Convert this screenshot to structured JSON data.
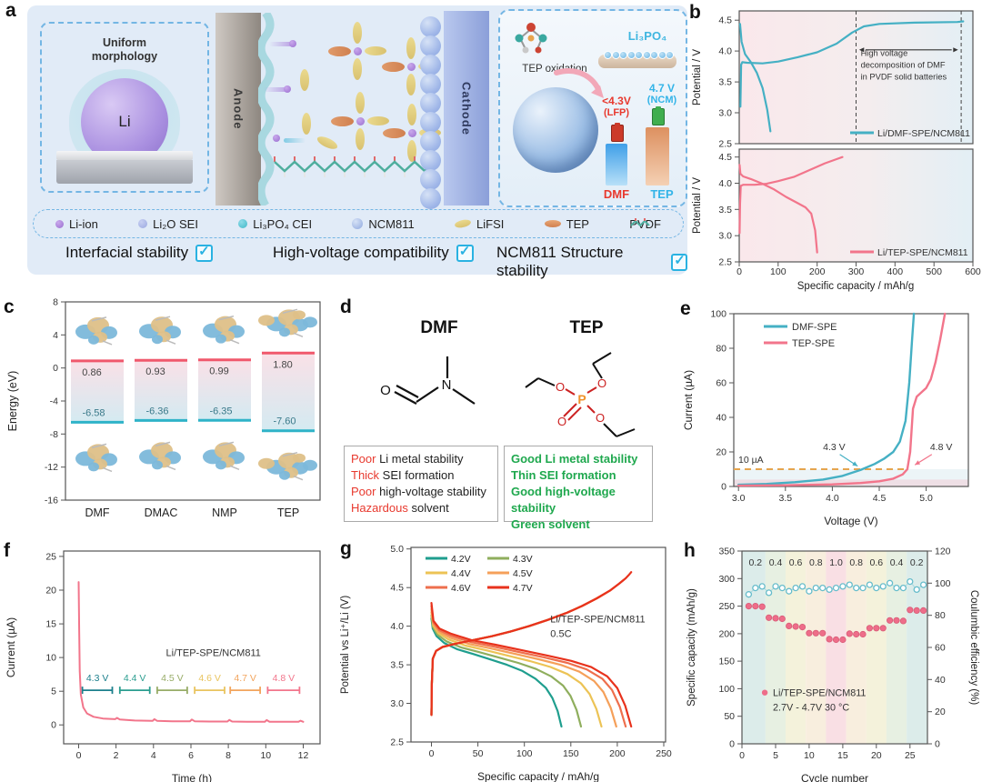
{
  "panels": {
    "a": {
      "label": "a",
      "inset_left": {
        "caption1": "Uniform",
        "caption2": "morphology",
        "sphere_label": "Li"
      },
      "anode_label": "Anode",
      "cathode_label": "Cathode",
      "inset_right": {
        "tep_oxidation": "TEP oxidation",
        "li3po4": "Li₃PO₄",
        "dmf_voltage": "<4.3V",
        "dmf_note": "(LFP)",
        "ncm_voltage": "4.7 V",
        "ncm_note": "(NCM)",
        "dmf_label": "DMF",
        "tep_label": "TEP"
      },
      "legend": [
        {
          "label": "Li-ion",
          "icon": "li-ion"
        },
        {
          "label": "Li₂O SEI",
          "icon": "li2o"
        },
        {
          "label": "Li₃PO₄ CEI",
          "icon": "li3po4"
        },
        {
          "label": "NCM811",
          "icon": "ncm"
        },
        {
          "label": "LiFSI",
          "icon": "lifsi"
        },
        {
          "label": "TEP",
          "icon": "tep"
        },
        {
          "label": "PVDF",
          "icon": "pvdf"
        }
      ],
      "checks": [
        "Interfacial stability",
        "High-voltage compatibility",
        "NCM811 Structure stability"
      ]
    },
    "b": {
      "label": "b"
    },
    "c": {
      "label": "c"
    },
    "d": {
      "label": "d",
      "hl_color": "#e8392e",
      "text_color": "#222222",
      "good_color": "#1fa84e",
      "dmf": {
        "title": "DMF",
        "atom_o": "O",
        "atom_n": "N",
        "props": [
          {
            "hl": "Poor",
            "rest": " Li metal stability"
          },
          {
            "hl": "Thick",
            "rest": " SEI formation"
          },
          {
            "hl": "Poor",
            "rest": " high-voltage stability"
          },
          {
            "hl": "Hazardous",
            "rest": " solvent"
          }
        ]
      },
      "tep": {
        "title": "TEP",
        "atom_p": "P",
        "atom_o": "O",
        "props": [
          "Good Li metal stability",
          "Thin SEI formation",
          "Good high-voltage stability",
          "Green solvent"
        ]
      }
    },
    "e": {
      "label": "e"
    },
    "f": {
      "label": "f"
    },
    "g": {
      "label": "g"
    },
    "h": {
      "label": "h"
    }
  },
  "chart_data": [
    {
      "id": "b1",
      "type": "line",
      "ylabel": "Potential / V",
      "xlim": [
        0,
        600
      ],
      "ylim": [
        2.5,
        4.65
      ],
      "yticks": [
        "2.5",
        "3.0",
        "3.5",
        "4.0",
        "4.5"
      ],
      "series": [
        {
          "name": "Li/DMF-SPE/NCM811",
          "color": "#45b0c4",
          "charge": [
            [
              3,
              3.1
            ],
            [
              5,
              3.78
            ],
            [
              8,
              3.82
            ],
            [
              20,
              3.81
            ],
            [
              60,
              3.8
            ],
            [
              100,
              3.83
            ],
            [
              150,
              3.9
            ],
            [
              200,
              3.98
            ],
            [
              250,
              4.12
            ],
            [
              290,
              4.3
            ],
            [
              320,
              4.4
            ],
            [
              360,
              4.44
            ],
            [
              450,
              4.46
            ],
            [
              560,
              4.47
            ],
            [
              575,
              4.48
            ]
          ],
          "discharge": [
            [
              2,
              4.44
            ],
            [
              6,
              4.15
            ],
            [
              15,
              3.95
            ],
            [
              30,
              3.82
            ],
            [
              45,
              3.65
            ],
            [
              60,
              3.4
            ],
            [
              72,
              3.05
            ],
            [
              80,
              2.7
            ]
          ]
        }
      ],
      "vlines": [
        300,
        570
      ],
      "annotation": [
        "High voltage",
        "decomposition of DMF",
        "in PVDF solid batteries"
      ]
    },
    {
      "id": "b2",
      "type": "line",
      "xlabel": "Specific capacity / mAh/g",
      "ylabel": "Potential / V",
      "xlim": [
        0,
        600
      ],
      "ylim": [
        2.5,
        4.65
      ],
      "xticks": [
        "0",
        "100",
        "200",
        "300",
        "400",
        "500",
        "600"
      ],
      "yticks": [
        "2.5",
        "3.0",
        "3.5",
        "4.0",
        "4.5"
      ],
      "series": [
        {
          "name": "Li/TEP-SPE/NCM811",
          "color": "#f2758b",
          "charge": [
            [
              1,
              3.05
            ],
            [
              2,
              3.6
            ],
            [
              4,
              3.95
            ],
            [
              10,
              3.97
            ],
            [
              40,
              3.97
            ],
            [
              70,
              3.99
            ],
            [
              100,
              4.04
            ],
            [
              140,
              4.12
            ],
            [
              180,
              4.25
            ],
            [
              220,
              4.38
            ],
            [
              250,
              4.46
            ],
            [
              265,
              4.5
            ]
          ],
          "discharge": [
            [
              1,
              4.35
            ],
            [
              3,
              4.18
            ],
            [
              10,
              4.13
            ],
            [
              30,
              4.08
            ],
            [
              60,
              3.99
            ],
            [
              90,
              3.88
            ],
            [
              120,
              3.74
            ],
            [
              150,
              3.62
            ],
            [
              170,
              3.54
            ],
            [
              185,
              3.42
            ],
            [
              195,
              3.1
            ],
            [
              200,
              2.68
            ]
          ]
        }
      ]
    },
    {
      "id": "c",
      "type": "energy-levels",
      "ylabel": "Energy (eV)",
      "ylim": [
        -16,
        8
      ],
      "yticks": [
        "-16",
        "-12",
        "-8",
        "-4",
        "0",
        "4",
        "8"
      ],
      "categories": [
        "DMF",
        "DMAC",
        "NMP",
        "TEP"
      ],
      "lumo": [
        0.86,
        0.93,
        0.99,
        1.8
      ],
      "homo": [
        -6.58,
        -6.36,
        -6.35,
        -7.6
      ],
      "lumo_color": "#f0586c",
      "homo_color": "#2fb3c8"
    },
    {
      "id": "e",
      "type": "line",
      "xlabel": "Voltage (V)",
      "ylabel": "Current (µA)",
      "xlim": [
        2.95,
        5.45
      ],
      "ylim": [
        0,
        100
      ],
      "xticks": [
        "3.0",
        "3.5",
        "4.0",
        "4.5",
        "5.0"
      ],
      "yticks": [
        "0",
        "20",
        "40",
        "60",
        "80",
        "100"
      ],
      "series": [
        {
          "name": "DMF-SPE",
          "color": "#45b0c4",
          "points": [
            [
              3.0,
              1
            ],
            [
              3.3,
              1.5
            ],
            [
              3.6,
              2.5
            ],
            [
              3.9,
              4
            ],
            [
              4.1,
              6
            ],
            [
              4.3,
              9.5
            ],
            [
              4.45,
              13
            ],
            [
              4.55,
              16
            ],
            [
              4.65,
              20
            ],
            [
              4.72,
              26
            ],
            [
              4.78,
              38
            ],
            [
              4.82,
              60
            ],
            [
              4.85,
              85
            ],
            [
              4.87,
              100
            ]
          ]
        },
        {
          "name": "TEP-SPE",
          "color": "#f2758b",
          "points": [
            [
              3.0,
              0.5
            ],
            [
              3.5,
              0.7
            ],
            [
              4.0,
              1.2
            ],
            [
              4.3,
              2
            ],
            [
              4.5,
              3
            ],
            [
              4.65,
              4.5
            ],
            [
              4.75,
              7
            ],
            [
              4.8,
              10
            ],
            [
              4.83,
              20
            ],
            [
              4.86,
              45
            ],
            [
              4.9,
              52
            ],
            [
              5.0,
              57
            ],
            [
              5.05,
              62
            ],
            [
              5.1,
              72
            ],
            [
              5.15,
              85
            ],
            [
              5.2,
              100
            ]
          ]
        }
      ],
      "hline": {
        "y": 10,
        "label": "10 µA",
        "color": "#e5a44e"
      },
      "annotations": [
        {
          "text": "4.3 V"
        },
        {
          "text": "4.8 V"
        }
      ]
    },
    {
      "id": "f",
      "type": "line",
      "xlabel": "Time (h)",
      "ylabel": "Current (µA)",
      "xlim": [
        -0.8,
        12.9
      ],
      "ylim": [
        -2.8,
        25.8
      ],
      "xticks": [
        "0",
        "2",
        "4",
        "6",
        "8",
        "10",
        "12"
      ],
      "yticks": [
        "0",
        "5",
        "10",
        "15",
        "20",
        "25"
      ],
      "series": [
        {
          "name": "Li/TEP-SPE/NCM811",
          "color": "#f2758b",
          "points": [
            [
              0,
              21.2
            ],
            [
              0.03,
              14
            ],
            [
              0.06,
              8
            ],
            [
              0.12,
              4.5
            ],
            [
              0.25,
              2.6
            ],
            [
              0.45,
              1.7
            ],
            [
              0.8,
              1.2
            ],
            [
              1.3,
              0.95
            ],
            [
              1.95,
              0.85
            ],
            [
              2.05,
              1.05
            ],
            [
              2.2,
              0.8
            ],
            [
              3,
              0.65
            ],
            [
              3.95,
              0.6
            ],
            [
              4.05,
              0.85
            ],
            [
              4.2,
              0.6
            ],
            [
              5,
              0.55
            ],
            [
              5.95,
              0.55
            ],
            [
              6.05,
              0.8
            ],
            [
              6.2,
              0.55
            ],
            [
              7,
              0.5
            ],
            [
              7.95,
              0.5
            ],
            [
              8.05,
              0.75
            ],
            [
              8.2,
              0.5
            ],
            [
              9,
              0.48
            ],
            [
              9.95,
              0.48
            ],
            [
              10.05,
              0.72
            ],
            [
              10.2,
              0.48
            ],
            [
              11,
              0.46
            ],
            [
              11.75,
              0.46
            ],
            [
              11.85,
              0.62
            ],
            [
              12,
              0.46
            ]
          ]
        }
      ],
      "brackets": [
        {
          "label": "4.3 V",
          "color": "#1b7f8c",
          "x1": 0.2,
          "x2": 1.8
        },
        {
          "label": "4.4 V",
          "color": "#2a9d8f",
          "x1": 2.2,
          "x2": 3.8
        },
        {
          "label": "4.5 V",
          "color": "#97ac67",
          "x1": 4.2,
          "x2": 5.8
        },
        {
          "label": "4.6 V",
          "color": "#e9c45f",
          "x1": 6.2,
          "x2": 7.8
        },
        {
          "label": "4.7 V",
          "color": "#f2a45c",
          "x1": 8.1,
          "x2": 9.7
        },
        {
          "label": "4.8 V",
          "color": "#f2758b",
          "x1": 10.1,
          "x2": 11.8
        }
      ],
      "bracket_y": 5.15,
      "annotation": "Li/TEP-SPE/NCM811"
    },
    {
      "id": "g",
      "type": "line",
      "xlabel": "Specific capacity / mAh/g",
      "ylabel": "Potential vs Li⁺/Li (V)",
      "xlim": [
        -22,
        252
      ],
      "ylim": [
        2.5,
        5.02
      ],
      "xticks": [
        "0",
        "50",
        "100",
        "150",
        "200",
        "250"
      ],
      "yticks": [
        "2.5",
        "3.0",
        "3.5",
        "4.0",
        "4.5",
        "5.0"
      ],
      "series": [
        {
          "name": "4.2V",
          "color": "#1f9e8e",
          "end": 140,
          "cutoff": 4.2
        },
        {
          "name": "4.3V",
          "color": "#8fae5d",
          "end": 161,
          "cutoff": 4.3
        },
        {
          "name": "4.4V",
          "color": "#ecc355",
          "end": 183,
          "cutoff": 4.4
        },
        {
          "name": "4.5V",
          "color": "#f5a05a",
          "end": 199,
          "cutoff": 4.5
        },
        {
          "name": "4.6V",
          "color": "#ee6f4d",
          "end": 209,
          "cutoff": 4.6
        },
        {
          "name": "4.7V",
          "color": "#e8321c",
          "end": 215,
          "cutoff": 4.7
        }
      ],
      "discharge_shape": {
        "fracs": [
          0,
          0.01,
          0.04,
          0.1,
          0.2,
          0.32,
          0.45,
          0.58,
          0.7,
          0.8,
          0.88,
          0.93,
          0.97,
          1.0
        ],
        "v_low": [
          4.1,
          3.97,
          3.87,
          3.78,
          3.7,
          3.64,
          3.57,
          3.5,
          3.42,
          3.32,
          3.2,
          3.07,
          2.9,
          2.7
        ],
        "v_high": [
          4.3,
          4.07,
          3.97,
          3.9,
          3.82,
          3.76,
          3.69,
          3.62,
          3.55,
          3.47,
          3.35,
          3.2,
          2.97,
          2.7
        ]
      },
      "charge_trunk": [
        [
          0,
          2.85
        ],
        [
          0.4,
          3.25
        ],
        [
          1.5,
          3.58
        ],
        [
          5,
          3.68
        ],
        [
          12,
          3.73
        ],
        [
          25,
          3.77
        ],
        [
          45,
          3.82
        ],
        [
          65,
          3.87
        ],
        [
          85,
          3.93
        ],
        [
          105,
          4.0
        ],
        [
          125,
          4.08
        ],
        [
          145,
          4.17
        ],
        [
          162,
          4.26
        ],
        [
          178,
          4.36
        ],
        [
          192,
          4.46
        ],
        [
          202,
          4.55
        ],
        [
          209,
          4.62
        ],
        [
          213,
          4.67
        ],
        [
          215,
          4.7
        ]
      ],
      "annotation": [
        "Li/TEP-SPE/NCM811",
        "0.5C"
      ]
    },
    {
      "id": "h",
      "type": "scatter",
      "xlabel": "Cycle number",
      "ylabel_left": "Specific capacity (mAh/g)",
      "ylabel_right": "Coulumbic efficiency (%)",
      "xlim": [
        0,
        27.6
      ],
      "ylim_left": [
        0,
        350
      ],
      "ylim_right": [
        0,
        120
      ],
      "xticks": [
        "0",
        "5",
        "10",
        "15",
        "20",
        "25"
      ],
      "yticks_left": [
        "0",
        "50",
        "100",
        "150",
        "200",
        "250",
        "300",
        "350"
      ],
      "yticks_right": [
        "0",
        "20",
        "40",
        "60",
        "80",
        "100",
        "120"
      ],
      "rates": [
        "0.2",
        "0.4",
        "0.6",
        "0.8",
        "1.0",
        "0.8",
        "0.6",
        "0.4",
        "0.2"
      ],
      "rate_centers": [
        2,
        5,
        8,
        11,
        14,
        17,
        20,
        23,
        26
      ],
      "band_bounds": [
        0,
        3.5,
        6.5,
        9.5,
        12.5,
        15.5,
        18.5,
        21.5,
        24.5,
        27.6
      ],
      "band_colors": [
        "#dcecea",
        "#e7f0e2",
        "#f4f2db",
        "#f8eede",
        "#f9dfe4",
        "#f8eede",
        "#f4f2db",
        "#e7f0e2",
        "#dcecea"
      ],
      "capacity": {
        "color": "#ee6d89",
        "values": [
          250,
          250,
          249,
          229,
          228,
          227,
          214,
          213,
          212,
          201,
          201,
          201,
          190,
          189,
          189,
          200,
          199,
          199,
          210,
          210,
          210,
          224,
          224,
          223,
          243,
          242,
          242
        ]
      },
      "efficiency": {
        "color": "#66bccb",
        "values": [
          93,
          97,
          98,
          94,
          98,
          97,
          95,
          97,
          98,
          95,
          97,
          97,
          96,
          97,
          98,
          99,
          97,
          97,
          99,
          97,
          98,
          100,
          97,
          97,
          101,
          96,
          99
        ]
      },
      "annotation": [
        "Li/TEP-SPE/NCM811",
        "2.7V - 4.7V 30 °C"
      ]
    }
  ]
}
